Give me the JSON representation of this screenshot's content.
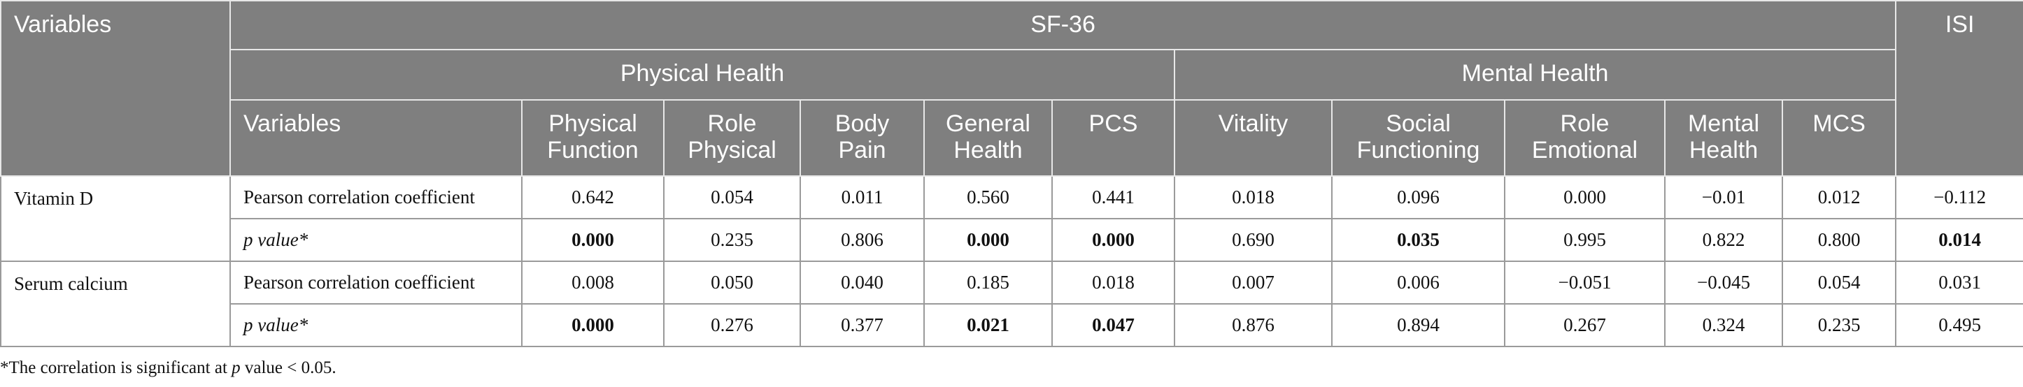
{
  "table": {
    "header": {
      "variables": "Variables",
      "sf36": "SF-36",
      "isi": "ISI",
      "groups": [
        "Physical Health",
        "Mental Health"
      ],
      "columns": [
        "Variables",
        "Physical Function",
        "Role Physical",
        "Body Pain",
        "General Health",
        "PCS",
        "Vitality",
        "Social Functioning",
        "Role Emotional",
        "Mental Health",
        "MCS"
      ]
    },
    "rows": [
      {
        "label": "Vitamin D",
        "stats": [
          {
            "name": "Pearson correlation coefficient",
            "values": [
              "0.642",
              "0.054",
              "0.011",
              "0.560",
              "0.441",
              "0.018",
              "0.096",
              "0.000",
              "−0.01",
              "0.012",
              "−0.112"
            ],
            "bold": [
              false,
              false,
              false,
              false,
              false,
              false,
              false,
              false,
              false,
              false,
              false
            ]
          },
          {
            "name": "p value*",
            "values": [
              "0.000",
              "0.235",
              "0.806",
              "0.000",
              "0.000",
              "0.690",
              "0.035",
              "0.995",
              "0.822",
              "0.800",
              "0.014"
            ],
            "bold": [
              true,
              false,
              false,
              true,
              true,
              false,
              true,
              false,
              false,
              false,
              true
            ]
          }
        ]
      },
      {
        "label": "Serum calcium",
        "stats": [
          {
            "name": "Pearson correlation coefficient",
            "values": [
              "0.008",
              "0.050",
              "0.040",
              "0.185",
              "0.018",
              "0.007",
              "0.006",
              "−0.051",
              "−0.045",
              "0.054",
              "0.031"
            ],
            "bold": [
              false,
              false,
              false,
              false,
              false,
              false,
              false,
              false,
              false,
              false,
              false
            ]
          },
          {
            "name": "p value*",
            "values": [
              "0.000",
              "0.276",
              "0.377",
              "0.021",
              "0.047",
              "0.876",
              "0.894",
              "0.267",
              "0.324",
              "0.235",
              "0.495"
            ],
            "bold": [
              true,
              false,
              false,
              true,
              true,
              false,
              false,
              false,
              false,
              false,
              false
            ]
          }
        ]
      }
    ]
  },
  "footnote": {
    "before": "*The correlation is significant at ",
    "italic": "p",
    "after": " value < 0.05."
  }
}
